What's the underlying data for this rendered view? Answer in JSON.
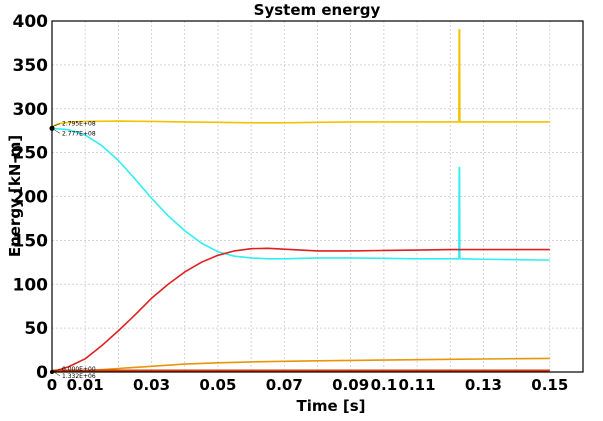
{
  "chart_data": {
    "type": "line",
    "title": "System energy",
    "xlabel": "Time [s]",
    "ylabel": "Energy [kN-m]",
    "xlim": [
      0,
      0.16
    ],
    "ylim": [
      0,
      400
    ],
    "grid": true,
    "x_ticks": [
      {
        "value": 0,
        "label": "0"
      },
      {
        "value": 0.01,
        "label": "0.01"
      },
      {
        "value": 0.03,
        "label": "0.03"
      },
      {
        "value": 0.05,
        "label": "0.05"
      },
      {
        "value": 0.07,
        "label": "0.07"
      },
      {
        "value": 0.09,
        "label": "0.09"
      },
      {
        "value": 0.1,
        "label": "0.1"
      },
      {
        "value": 0.11,
        "label": "0.11"
      },
      {
        "value": 0.13,
        "label": "0.13"
      },
      {
        "value": 0.15,
        "label": "0.15"
      }
    ],
    "x_grid": [
      0,
      0.01,
      0.02,
      0.03,
      0.04,
      0.05,
      0.06,
      0.07,
      0.08,
      0.09,
      0.1,
      0.11,
      0.12,
      0.13,
      0.14,
      0.15,
      0.16
    ],
    "y_ticks": [
      0,
      50,
      100,
      150,
      200,
      250,
      300,
      350,
      400
    ],
    "annotations": [
      {
        "text": "2.795E+08",
        "x": 0,
        "y": 279.5
      },
      {
        "text": "2.777E+08",
        "x": 0,
        "y": 277.7
      },
      {
        "text": "0.000E+00",
        "x": 0,
        "y": 0
      },
      {
        "text": "1.332E+06",
        "x": 0,
        "y": 1.3
      }
    ],
    "series": [
      {
        "color": "#f2c200",
        "x": [
          0,
          0.002,
          0.006,
          0.01,
          0.02,
          0.03,
          0.04,
          0.05,
          0.06,
          0.07,
          0.08,
          0.09,
          0.1,
          0.11,
          0.1225,
          0.1226,
          0.1227,
          0.1228,
          0.1229,
          0.13,
          0.14,
          0.15
        ],
        "y": [
          279.5,
          283,
          285,
          285.5,
          286,
          285.5,
          285,
          284.5,
          284,
          284,
          284.5,
          285,
          285,
          285,
          285,
          285,
          390,
          390,
          285,
          285,
          285,
          285
        ]
      },
      {
        "color": "#33eef0",
        "x": [
          0,
          0.005,
          0.01,
          0.015,
          0.02,
          0.025,
          0.03,
          0.035,
          0.04,
          0.045,
          0.05,
          0.055,
          0.06,
          0.065,
          0.07,
          0.08,
          0.09,
          0.1,
          0.11,
          0.1225,
          0.1226,
          0.1227,
          0.1228,
          0.1229,
          0.13,
          0.14,
          0.15
        ],
        "y": [
          277.7,
          276,
          270,
          258,
          241,
          220,
          198,
          178,
          161,
          147,
          137,
          132,
          130,
          129,
          129,
          130,
          130,
          129.5,
          129,
          129,
          129,
          233,
          233,
          129,
          128.5,
          128,
          127.5
        ]
      },
      {
        "color": "#e02020",
        "x": [
          0,
          0.005,
          0.01,
          0.015,
          0.02,
          0.025,
          0.03,
          0.035,
          0.04,
          0.045,
          0.05,
          0.055,
          0.06,
          0.065,
          0.07,
          0.08,
          0.09,
          0.1,
          0.11,
          0.12,
          0.13,
          0.14,
          0.15
        ],
        "y": [
          0,
          6,
          15,
          30,
          47,
          65,
          84,
          100,
          114,
          125,
          133,
          138,
          140.5,
          141,
          140,
          138,
          138,
          138.5,
          139,
          139.5,
          139.5,
          139.5,
          139.5
        ]
      },
      {
        "color": "#e8950c",
        "x": [
          0,
          0.005,
          0.01,
          0.02,
          0.03,
          0.04,
          0.05,
          0.06,
          0.07,
          0.08,
          0.09,
          0.1,
          0.11,
          0.12,
          0.13,
          0.14,
          0.15
        ],
        "y": [
          0,
          0.5,
          1.5,
          4,
          6.5,
          9,
          10.5,
          11.5,
          12.2,
          12.8,
          13.2,
          13.6,
          14,
          14.4,
          14.8,
          15.2,
          15.5
        ]
      },
      {
        "color": "#d83a00",
        "x": [
          0,
          0.05,
          0.1,
          0.15
        ],
        "y": [
          1.3,
          1.3,
          1.3,
          1.3
        ]
      }
    ]
  }
}
